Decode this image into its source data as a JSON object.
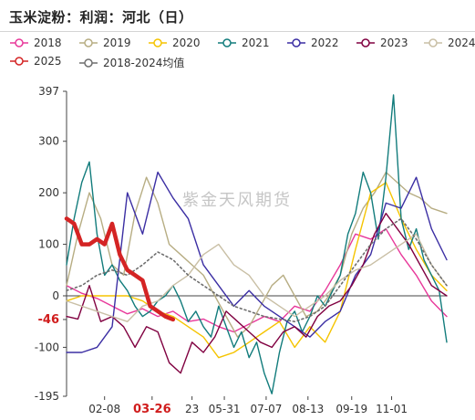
{
  "title": "玉米淀粉：利润：河北（日）",
  "watermark": "紫金天风期货",
  "chart_data": {
    "type": "line",
    "title": "玉米淀粉：利润：河北（日）",
    "ylim": [
      -195,
      397
    ],
    "yticks": [
      {
        "value": 397,
        "label": "397",
        "highlight": false
      },
      {
        "value": 300,
        "label": "300",
        "highlight": false
      },
      {
        "value": 200,
        "label": "200",
        "highlight": false
      },
      {
        "value": 100,
        "label": "100",
        "highlight": false
      },
      {
        "value": 0,
        "label": "0",
        "highlight": false
      },
      {
        "value": -46,
        "label": "-46",
        "highlight": true
      },
      {
        "value": -100,
        "label": "-100",
        "highlight": false
      },
      {
        "value": -195,
        "label": "-195",
        "highlight": false
      }
    ],
    "x_range": [
      0,
      100
    ],
    "xticks": [
      {
        "x": 10,
        "label": "02-08",
        "highlight": false
      },
      {
        "x": 22.5,
        "label": "03-26",
        "highlight": true
      },
      {
        "x": 33,
        "label": "23",
        "highlight": false
      },
      {
        "x": 41.5,
        "label": "05-31",
        "highlight": false
      },
      {
        "x": 52.5,
        "label": "07-07",
        "highlight": false
      },
      {
        "x": 63.5,
        "label": "08-13",
        "highlight": false
      },
      {
        "x": 75,
        "label": "09-19",
        "highlight": false
      },
      {
        "x": 85.5,
        "label": "11-01",
        "highlight": false
      }
    ],
    "grid": false,
    "legend_position": "top",
    "series": [
      {
        "name": "2018",
        "color": "#e8389a",
        "width": 1.4,
        "dash": false,
        "marker": "circle",
        "x": [
          0,
          4,
          8,
          12,
          16,
          20,
          24,
          28,
          32,
          36,
          40,
          44,
          48,
          52,
          56,
          60,
          64,
          68,
          72,
          76,
          80,
          84,
          88,
          92,
          96,
          100
        ],
        "y": [
          20,
          5,
          -5,
          -20,
          -35,
          -25,
          -40,
          -30,
          -50,
          -45,
          -60,
          -70,
          -55,
          -40,
          -50,
          -20,
          -30,
          10,
          60,
          120,
          110,
          130,
          80,
          40,
          -10,
          -40
        ]
      },
      {
        "name": "2019",
        "color": "#b7ad83",
        "width": 1.4,
        "dash": false,
        "marker": "circle",
        "x": [
          0,
          3,
          6,
          9,
          12,
          15,
          18,
          21,
          24,
          27,
          30,
          33,
          36,
          39,
          42,
          45,
          48,
          51,
          54,
          57,
          60,
          63,
          66,
          69,
          72,
          75,
          78,
          81,
          84,
          87,
          90,
          93,
          96,
          100
        ],
        "y": [
          20,
          120,
          200,
          150,
          60,
          40,
          160,
          230,
          180,
          100,
          80,
          60,
          40,
          0,
          -40,
          -80,
          -60,
          -20,
          20,
          40,
          0,
          -40,
          -30,
          0,
          40,
          120,
          170,
          200,
          240,
          220,
          200,
          190,
          170,
          160
        ]
      },
      {
        "name": "2020",
        "color": "#f5c400",
        "width": 1.4,
        "dash": false,
        "marker": "circle",
        "x": [
          0,
          4,
          8,
          12,
          16,
          20,
          24,
          28,
          32,
          36,
          40,
          44,
          48,
          52,
          56,
          60,
          64,
          68,
          72,
          76,
          80,
          84,
          88,
          92,
          96,
          100
        ],
        "y": [
          -10,
          0,
          0,
          0,
          0,
          -10,
          -30,
          -40,
          -60,
          -80,
          -120,
          -110,
          -90,
          -70,
          -50,
          -100,
          -60,
          -90,
          -30,
          90,
          200,
          220,
          150,
          90,
          40,
          10
        ]
      },
      {
        "name": "2021",
        "color": "#127c7c",
        "width": 1.4,
        "dash": false,
        "marker": "circle",
        "x": [
          0,
          2,
          4,
          6,
          8,
          10,
          12,
          14,
          16,
          18,
          20,
          22,
          24,
          26,
          28,
          30,
          32,
          34,
          36,
          38,
          40,
          42,
          44,
          46,
          48,
          50,
          52,
          54,
          56,
          58,
          60,
          62,
          64,
          66,
          68,
          70,
          72,
          74,
          76,
          78,
          80,
          82,
          84,
          86,
          88,
          90,
          92,
          94,
          96,
          98,
          100
        ],
        "y": [
          60,
          150,
          220,
          260,
          120,
          40,
          60,
          30,
          10,
          -20,
          -40,
          -30,
          -10,
          0,
          20,
          -10,
          -50,
          -30,
          -60,
          -80,
          -20,
          -60,
          -100,
          -70,
          -120,
          -90,
          -150,
          -190,
          -110,
          -50,
          -30,
          -70,
          -40,
          0,
          -20,
          10,
          40,
          120,
          160,
          240,
          200,
          110,
          230,
          390,
          150,
          90,
          130,
          70,
          40,
          10,
          -90
        ]
      },
      {
        "name": "2022",
        "color": "#3b2ea3",
        "width": 1.4,
        "dash": false,
        "marker": "circle",
        "x": [
          0,
          4,
          8,
          12,
          16,
          20,
          24,
          28,
          32,
          36,
          40,
          44,
          48,
          52,
          56,
          60,
          64,
          68,
          72,
          76,
          80,
          84,
          88,
          92,
          96,
          100
        ],
        "y": [
          -110,
          -110,
          -100,
          -60,
          200,
          120,
          240,
          190,
          150,
          60,
          20,
          -20,
          10,
          -20,
          -40,
          -60,
          -80,
          -50,
          -30,
          40,
          80,
          180,
          170,
          230,
          130,
          70
        ]
      },
      {
        "name": "2023",
        "color": "#800040",
        "width": 1.4,
        "dash": false,
        "marker": "circle",
        "x": [
          0,
          3,
          6,
          9,
          12,
          15,
          18,
          21,
          24,
          27,
          30,
          33,
          36,
          39,
          42,
          45,
          48,
          51,
          54,
          57,
          60,
          63,
          66,
          69,
          72,
          75,
          78,
          81,
          84,
          87,
          90,
          93,
          96,
          100
        ],
        "y": [
          -40,
          -45,
          20,
          -50,
          -40,
          -60,
          -100,
          -60,
          -70,
          -130,
          -150,
          -90,
          -110,
          -80,
          -30,
          -50,
          -70,
          -90,
          -100,
          -70,
          -60,
          -80,
          -40,
          -20,
          -10,
          20,
          60,
          120,
          160,
          130,
          100,
          60,
          20,
          0
        ]
      },
      {
        "name": "2024",
        "color": "#c9bfa5",
        "width": 1.4,
        "dash": false,
        "marker": "circle",
        "x": [
          0,
          4,
          8,
          12,
          16,
          20,
          24,
          28,
          32,
          36,
          40,
          44,
          48,
          52,
          56,
          60,
          64,
          68,
          72,
          76,
          80,
          84,
          88,
          92,
          96,
          100
        ],
        "y": [
          -10,
          -20,
          -30,
          -40,
          -50,
          -20,
          -10,
          20,
          40,
          80,
          100,
          60,
          40,
          0,
          -20,
          -40,
          -20,
          0,
          30,
          50,
          60,
          80,
          100,
          120,
          60,
          20
        ]
      },
      {
        "name": "2025",
        "color": "#d42424",
        "width": 4.5,
        "dash": false,
        "marker": "circle",
        "x": [
          0,
          2,
          4,
          6,
          8,
          10,
          12,
          14,
          16,
          18,
          20,
          22,
          24,
          26,
          28
        ],
        "y": [
          150,
          140,
          100,
          100,
          110,
          100,
          140,
          80,
          50,
          40,
          30,
          -20,
          -30,
          -40,
          -46
        ]
      },
      {
        "name": "2018-2024均值",
        "color": "#6e6e6e",
        "width": 1.6,
        "dash": true,
        "marker": "circle",
        "x": [
          0,
          4,
          8,
          12,
          16,
          20,
          24,
          28,
          32,
          36,
          40,
          44,
          48,
          52,
          56,
          60,
          64,
          68,
          72,
          76,
          80,
          84,
          88,
          92,
          96,
          100
        ],
        "y": [
          10,
          20,
          40,
          50,
          40,
          60,
          85,
          70,
          40,
          20,
          0,
          -20,
          -30,
          -40,
          -45,
          -50,
          -40,
          -20,
          20,
          60,
          100,
          130,
          150,
          110,
          60,
          20
        ]
      }
    ]
  }
}
